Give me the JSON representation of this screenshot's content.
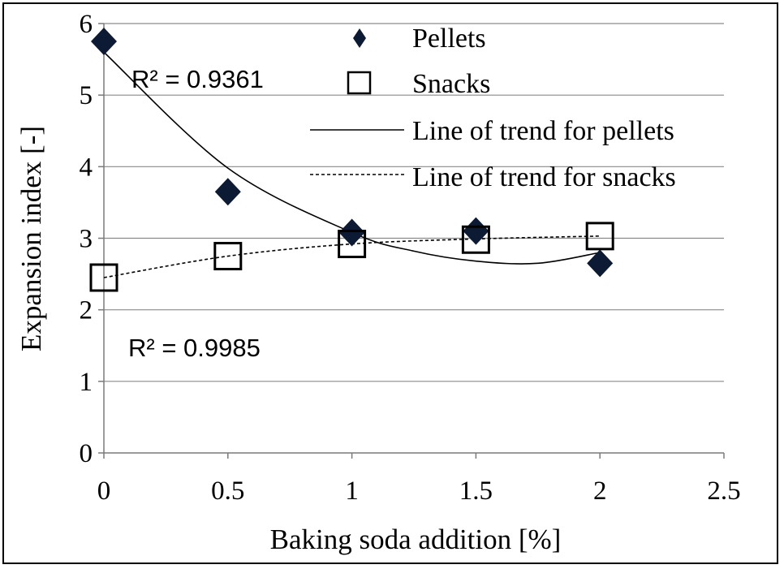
{
  "chart_data": {
    "type": "scatter",
    "title": "",
    "xlabel": "Baking soda addition [%]",
    "ylabel": "Expansion index [-]",
    "xlim": [
      0,
      2.5
    ],
    "ylim": [
      0,
      6
    ],
    "x_ticks": [
      "0",
      "0.5",
      "1",
      "1.5",
      "2",
      "2.5"
    ],
    "y_ticks": [
      "0",
      "1",
      "2",
      "3",
      "4",
      "5",
      "6"
    ],
    "grid": "horizontal",
    "legend_position": "top-right",
    "series": [
      {
        "name": "Pellets",
        "marker": "diamond",
        "color": "#0d1a33",
        "x": [
          0,
          0.5,
          1,
          1.5,
          2
        ],
        "y": [
          5.75,
          3.65,
          3.08,
          3.1,
          2.65
        ]
      },
      {
        "name": "Snacks",
        "marker": "square-open",
        "color": "#000000",
        "x": [
          0,
          0.5,
          1,
          1.5,
          2
        ],
        "y": [
          2.45,
          2.75,
          2.92,
          2.98,
          3.03
        ]
      }
    ],
    "trendlines": [
      {
        "name": "Line of trend for pellets",
        "style": "solid",
        "x_range": [
          0,
          2
        ],
        "y_samples": [
          [
            0,
            5.6
          ],
          [
            0.5,
            3.98
          ],
          [
            1,
            3.08
          ],
          [
            1.25,
            2.82
          ],
          [
            1.5,
            2.68
          ],
          [
            1.75,
            2.65
          ],
          [
            2,
            2.8
          ]
        ],
        "r2_label": "R² = 0.9361"
      },
      {
        "name": "Line of trend for snacks",
        "style": "dashed",
        "x_range": [
          0,
          2
        ],
        "y_samples": [
          [
            0,
            2.45
          ],
          [
            0.5,
            2.75
          ],
          [
            1,
            2.92
          ],
          [
            1.5,
            2.99
          ],
          [
            2,
            3.03
          ]
        ],
        "r2_label": "R² = 0.9985"
      }
    ]
  }
}
